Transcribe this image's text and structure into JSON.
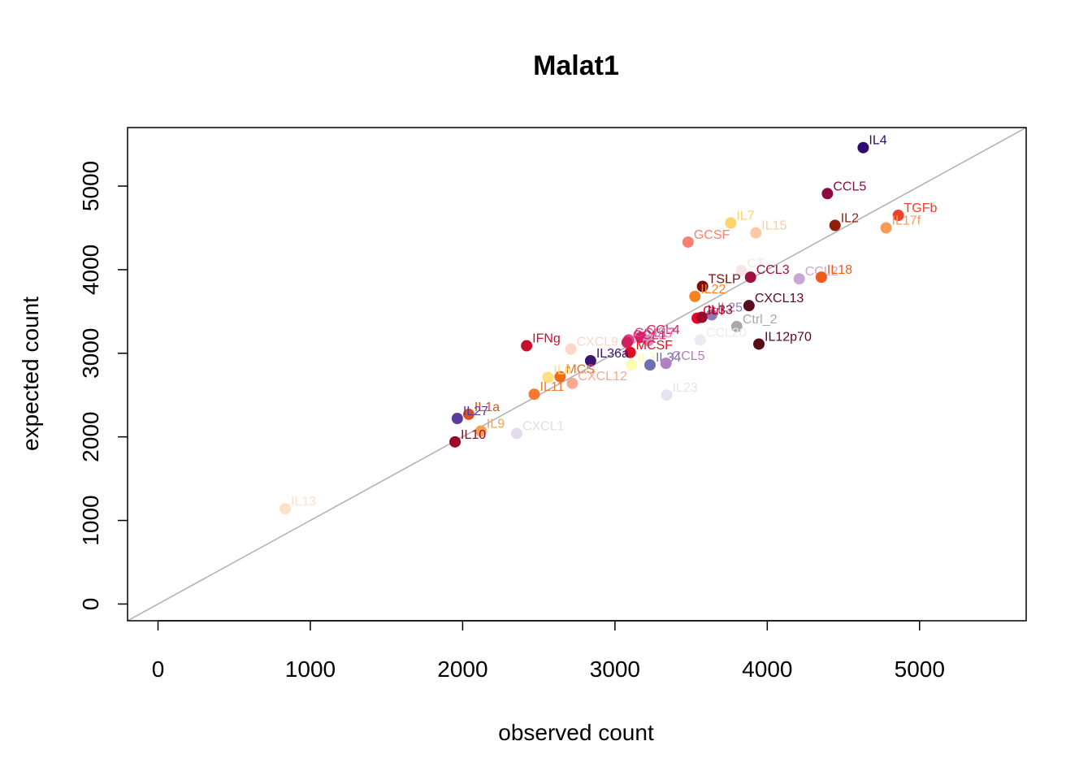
{
  "chart_data": {
    "type": "scatter",
    "title": "Malat1",
    "xlabel": "observed count",
    "ylabel": "expected count",
    "xlim": [
      -200,
      5700
    ],
    "ylim": [
      -200,
      5700
    ],
    "xticks": [
      0,
      1000,
      2000,
      3000,
      4000,
      5000
    ],
    "yticks": [
      0,
      1000,
      2000,
      3000,
      4000,
      5000
    ],
    "reference_line": "y = x",
    "grid": false,
    "legend": "none",
    "points": [
      {
        "label": "IL4",
        "x": 4630,
        "y": 5460,
        "color": "#2d0a6e"
      },
      {
        "label": "CCL5",
        "x": 4395,
        "y": 4910,
        "color": "#8b0a40"
      },
      {
        "label": "TGFb",
        "x": 4860,
        "y": 4650,
        "color": "#f0402a"
      },
      {
        "label": "IL17f",
        "x": 4780,
        "y": 4500,
        "color": "#fb9a5a"
      },
      {
        "label": "IL2",
        "x": 4445,
        "y": 4530,
        "color": "#8f1f0a"
      },
      {
        "label": "IL7",
        "x": 3760,
        "y": 4560,
        "color": "#fdd36a"
      },
      {
        "label": "IL15",
        "x": 3925,
        "y": 4440,
        "color": "#fdc9a3"
      },
      {
        "label": "GCSF",
        "x": 3480,
        "y": 4330,
        "color": "#fa8070"
      },
      {
        "label": "CT",
        "x": 3830,
        "y": 3990,
        "color": "#f5e8e3"
      },
      {
        "label": "CCL3",
        "x": 3890,
        "y": 3910,
        "color": "#a01040"
      },
      {
        "label": "CCL2",
        "x": 4210,
        "y": 3890,
        "color": "#c9a7d5"
      },
      {
        "label": "IL18",
        "x": 4355,
        "y": 3910,
        "color": "#f05a1a"
      },
      {
        "label": "TSLP",
        "x": 3575,
        "y": 3800,
        "color": "#7a0d0d"
      },
      {
        "label": "IL22",
        "x": 3525,
        "y": 3680,
        "color": "#f5821f"
      },
      {
        "label": "CXCL13",
        "x": 3880,
        "y": 3570,
        "color": "#5c0a1f"
      },
      {
        "label": "IL25",
        "x": 3635,
        "y": 3460,
        "color": "#8c7ab8"
      },
      {
        "label": "Ctrl",
        "x": 3540,
        "y": 3420,
        "color": "#e8002a"
      },
      {
        "label": "IL33",
        "x": 3570,
        "y": 3430,
        "color": "#9a0a2a"
      },
      {
        "label": "Ctrl_2",
        "x": 3800,
        "y": 3320,
        "color": "#a8a8a8"
      },
      {
        "label": "CCL20",
        "x": 3560,
        "y": 3160,
        "color": "#efe8f2"
      },
      {
        "label": "IL12p70",
        "x": 3945,
        "y": 3110,
        "color": "#5a0a14"
      },
      {
        "label": "IFNg",
        "x": 2420,
        "y": 3090,
        "color": "#c8102e"
      },
      {
        "label": "CXCL9",
        "x": 2710,
        "y": 3050,
        "color": "#fdd8c8"
      },
      {
        "label": "CCL4",
        "x": 3170,
        "y": 3190,
        "color": "#d4206a"
      },
      {
        "label": "CCL17",
        "x": 3090,
        "y": 3160,
        "color": "#e0408a"
      },
      {
        "label": "IL5",
        "x": 3220,
        "y": 3150,
        "color": "#d090c0"
      },
      {
        "label": "MCSF",
        "x": 3100,
        "y": 3010,
        "color": "#e0101e"
      },
      {
        "label": "CCL1",
        "x": 3080,
        "y": 3130,
        "color": "#d02060"
      },
      {
        "label": "IL36a",
        "x": 2840,
        "y": 2910,
        "color": "#3d1470"
      },
      {
        "label": "IL3",
        "x": 3110,
        "y": 2860,
        "color": "#fdfcb0"
      },
      {
        "label": "IL34",
        "x": 3230,
        "y": 2860,
        "color": "#6c70b0"
      },
      {
        "label": "CCL5",
        "x": 3335,
        "y": 2880,
        "color": "#b080c0"
      },
      {
        "label": "MCS",
        "x": 2640,
        "y": 2720,
        "color": "#f06a1a"
      },
      {
        "label": "IL6",
        "x": 2560,
        "y": 2710,
        "color": "#fde080"
      },
      {
        "label": "CXCL12",
        "x": 2720,
        "y": 2640,
        "color": "#fca890"
      },
      {
        "label": "IL23",
        "x": 3340,
        "y": 2500,
        "color": "#e6e2ee"
      },
      {
        "label": "IL11",
        "x": 2470,
        "y": 2510,
        "color": "#f57a30"
      },
      {
        "label": "IL1a",
        "x": 2040,
        "y": 2270,
        "color": "#e0501e"
      },
      {
        "label": "IL27",
        "x": 1965,
        "y": 2220,
        "color": "#5a3a9a"
      },
      {
        "label": "IL9",
        "x": 2120,
        "y": 2070,
        "color": "#f5a050"
      },
      {
        "label": "CXCL1",
        "x": 2355,
        "y": 2040,
        "color": "#e2dcec"
      },
      {
        "label": "IL10",
        "x": 1950,
        "y": 1940,
        "color": "#9a0a28"
      },
      {
        "label": "IL13",
        "x": 835,
        "y": 1140,
        "color": "#fde0c8"
      }
    ]
  }
}
